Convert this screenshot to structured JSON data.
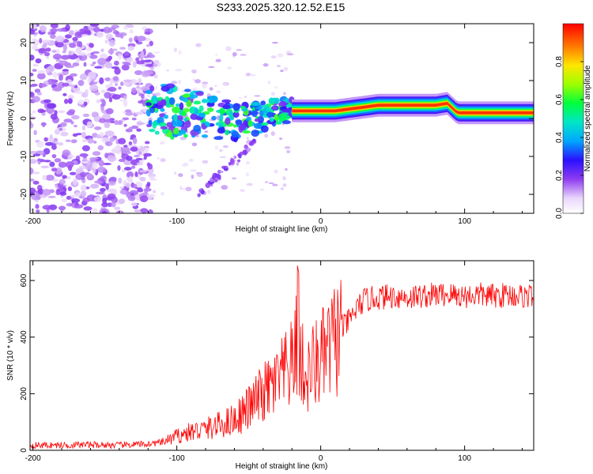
{
  "title": "S233.2025.320.12.52.E15",
  "chart_data": [
    {
      "type": "heatmap",
      "xlabel": "Height of straight line (km)",
      "ylabel": "Frequency (Hz)",
      "xlim": [
        -202,
        148
      ],
      "ylim": [
        -25,
        25
      ],
      "x_ticks": [
        -200,
        -100,
        0,
        100
      ],
      "y_ticks": [
        -20,
        -10,
        0,
        10,
        20
      ],
      "ridge": {
        "x": [
          -120,
          -100,
          -80,
          -60,
          -45,
          -30,
          -20,
          -10,
          0,
          10,
          20,
          40,
          60,
          80,
          88,
          95,
          110,
          130,
          148
        ],
        "frequency_hz": [
          2,
          2,
          1,
          -1,
          0,
          2,
          2,
          2,
          2,
          2,
          2.5,
          3.5,
          3.5,
          3.5,
          4,
          1.5,
          1.5,
          1.5,
          1.5
        ]
      },
      "colorbar": {
        "label": "Normalized spectral amplitude",
        "range": [
          0,
          1
        ],
        "ticks": [
          0.0,
          0.2,
          0.4,
          0.6,
          0.8
        ]
      }
    },
    {
      "type": "line",
      "xlabel": "Height of straight line (km)",
      "ylabel": "SNR (10 * v/v)",
      "xlim": [
        -202,
        148
      ],
      "ylim": [
        0,
        670
      ],
      "x_ticks": [
        -200,
        -100,
        0,
        100
      ],
      "y_ticks": [
        0,
        200,
        400,
        600
      ],
      "color": "#ff0000",
      "series": [
        {
          "name": "SNR",
          "x": [
            -202,
            -180,
            -160,
            -140,
            -120,
            -110,
            -100,
            -90,
            -80,
            -70,
            -60,
            -50,
            -40,
            -30,
            -25,
            -20,
            -16,
            -12,
            -10,
            -5,
            0,
            5,
            10,
            15,
            20,
            25,
            30,
            40,
            50,
            60,
            70,
            80,
            90,
            100,
            110,
            120,
            130,
            140,
            148
          ],
          "y": [
            18,
            18,
            20,
            18,
            22,
            28,
            50,
            65,
            75,
            90,
            110,
            150,
            200,
            240,
            270,
            300,
            380,
            280,
            250,
            300,
            320,
            350,
            390,
            430,
            460,
            500,
            530,
            540,
            545,
            540,
            545,
            550,
            550,
            545,
            550,
            545,
            550,
            545,
            548
          ]
        }
      ]
    }
  ]
}
